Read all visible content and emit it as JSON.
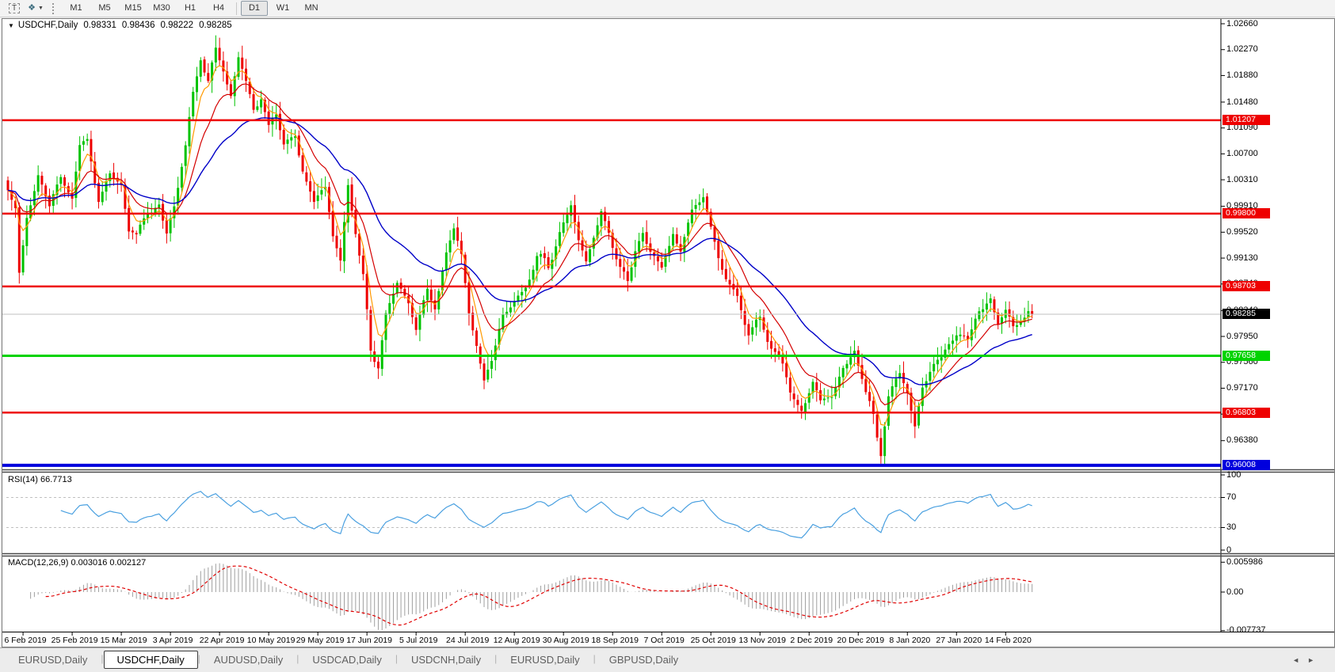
{
  "icons": {
    "text_tool": "T",
    "arrange": "❖",
    "caret": "▼",
    "dropdown": "▼",
    "scroll_left": "◄",
    "scroll_right": "►"
  },
  "toolbar": {
    "timeframes": [
      {
        "label": "M1",
        "active": false
      },
      {
        "label": "M5",
        "active": false
      },
      {
        "label": "M15",
        "active": false
      },
      {
        "label": "M30",
        "active": false
      },
      {
        "label": "H1",
        "active": false
      },
      {
        "label": "H4",
        "active": false
      },
      {
        "label": "D1",
        "active": true
      },
      {
        "label": "W1",
        "active": false
      },
      {
        "label": "MN",
        "active": false
      }
    ]
  },
  "chart_window": {
    "title": {
      "symbol": "USDCHF,Daily",
      "open": "0.98331",
      "high": "0.98436",
      "low": "0.98222",
      "close": "0.98285"
    }
  },
  "chart_data": {
    "type": "candlestick",
    "symbol": "USDCHF",
    "timeframe": "Daily",
    "ohlc_display": {
      "open": 0.98331,
      "high": 0.98436,
      "low": 0.98222,
      "close": 0.98285
    },
    "candle_count": 272,
    "colors": {
      "up": "#00c300",
      "down": "#ee0000",
      "current_price_line": "#bfbfbf",
      "axis_line": "#000000"
    },
    "price_axis": {
      "current_price": "0.98285",
      "ticks": [
        {
          "label": "1.02660"
        },
        {
          "label": "1.02270"
        },
        {
          "label": "1.01880"
        },
        {
          "label": "1.01480"
        },
        {
          "label": "1.01090"
        },
        {
          "label": "1.00700"
        },
        {
          "label": "1.00310"
        },
        {
          "label": "0.99910"
        },
        {
          "label": "0.99520"
        },
        {
          "label": "0.99130"
        },
        {
          "label": "0.98740"
        },
        {
          "label": "0.98340"
        },
        {
          "label": "0.97950"
        },
        {
          "label": "0.97560"
        },
        {
          "label": "0.97170"
        },
        {
          "label": "0.96780"
        },
        {
          "label": "0.96380"
        }
      ]
    },
    "horizontal_lines": [
      {
        "price": 1.01207,
        "label": "1.01207",
        "color": "#ee0000",
        "width": 2.5
      },
      {
        "price": 0.998,
        "label": "0.99800",
        "color": "#ee0000",
        "width": 2.5
      },
      {
        "price": 0.98703,
        "label": "0.98703",
        "color": "#ee0000",
        "width": 2.5
      },
      {
        "price": 0.97658,
        "label": "0.97658",
        "color": "#00d300",
        "width": 3
      },
      {
        "price": 0.96803,
        "label": "0.96803",
        "color": "#ee0000",
        "width": 2.5
      },
      {
        "price": 0.96008,
        "label": "0.96008",
        "color": "#0000dd",
        "width": 4
      }
    ],
    "date_axis": {
      "labels": [
        "6 Feb 2019",
        "25 Feb 2019",
        "15 Mar 2019",
        "3 Apr 2019",
        "22 Apr 2019",
        "10 May 2019",
        "29 May 2019",
        "17 Jun 2019",
        "5 Jul 2019",
        "24 Jul 2019",
        "12 Aug 2019",
        "30 Aug 2019",
        "18 Sep 2019",
        "7 Oct 2019",
        "25 Oct 2019",
        "13 Nov 2019",
        "2 Dec 2019",
        "20 Dec 2019",
        "8 Jan 2020",
        "27 Jan 2020",
        "14 Feb 2020"
      ],
      "first_tick_index": 4,
      "tick_step": 13
    },
    "close_anchors": [
      [
        0,
        1.003
      ],
      [
        2,
        0.9985
      ],
      [
        3,
        0.9885
      ],
      [
        5,
        0.9975
      ],
      [
        8,
        1.0038
      ],
      [
        11,
        0.9995
      ],
      [
        14,
        1.004
      ],
      [
        17,
        1.0005
      ],
      [
        19,
        1.008
      ],
      [
        21,
        1.0092
      ],
      [
        24,
        1.0008
      ],
      [
        27,
        1.004
      ],
      [
        30,
        1.0018
      ],
      [
        32,
        0.9945
      ],
      [
        34,
        0.9938
      ],
      [
        37,
        0.9985
      ],
      [
        40,
        1.0002
      ],
      [
        42,
        0.9958
      ],
      [
        44,
        0.9992
      ],
      [
        47,
        1.0075
      ],
      [
        49,
        1.016
      ],
      [
        51,
        1.0218
      ],
      [
        53,
        1.0185
      ],
      [
        55,
        1.0232
      ],
      [
        57,
        1.0198
      ],
      [
        59,
        1.0162
      ],
      [
        61,
        1.0208
      ],
      [
        63,
        1.0172
      ],
      [
        65,
        1.0132
      ],
      [
        67,
        1.0152
      ],
      [
        69,
        1.0102
      ],
      [
        71,
        1.0118
      ],
      [
        73,
        1.0072
      ],
      [
        76,
        1.0095
      ],
      [
        78,
        1.0048
      ],
      [
        81,
        0.9992
      ],
      [
        84,
        1.0012
      ],
      [
        86,
        0.9942
      ],
      [
        88,
        0.9905
      ],
      [
        90,
        1.0028
      ],
      [
        92,
        0.9962
      ],
      [
        94,
        0.9885
      ],
      [
        96,
        0.9772
      ],
      [
        98,
        0.9748
      ],
      [
        100,
        0.9822
      ],
      [
        103,
        0.9868
      ],
      [
        106,
        0.9838
      ],
      [
        108,
        0.9802
      ],
      [
        111,
        0.9868
      ],
      [
        113,
        0.9842
      ],
      [
        116,
        0.9912
      ],
      [
        118,
        0.9948
      ],
      [
        120,
        0.991
      ],
      [
        122,
        0.9822
      ],
      [
        124,
        0.9782
      ],
      [
        126,
        0.9722
      ],
      [
        128,
        0.9758
      ],
      [
        131,
        0.9832
      ],
      [
        134,
        0.9852
      ],
      [
        137,
        0.9882
      ],
      [
        140,
        0.9922
      ],
      [
        143,
        0.9902
      ],
      [
        146,
        0.9952
      ],
      [
        149,
        0.9992
      ],
      [
        151,
        0.9932
      ],
      [
        153,
        0.9902
      ],
      [
        155,
        0.9942
      ],
      [
        157,
        0.9985
      ],
      [
        159,
        0.9952
      ],
      [
        162,
        0.9895
      ],
      [
        164,
        0.9872
      ],
      [
        166,
        0.9922
      ],
      [
        168,
        0.9952
      ],
      [
        170,
        0.9922
      ],
      [
        173,
        0.9892
      ],
      [
        176,
        0.9952
      ],
      [
        178,
        0.9922
      ],
      [
        181,
        0.9975
      ],
      [
        184,
        1.0002
      ],
      [
        186,
        0.9952
      ],
      [
        188,
        0.9912
      ],
      [
        190,
        0.9882
      ],
      [
        193,
        0.9852
      ],
      [
        196,
        0.9802
      ],
      [
        199,
        0.9818
      ],
      [
        202,
        0.9782
      ],
      [
        205,
        0.9742
      ],
      [
        207,
        0.9702
      ],
      [
        210,
        0.9682
      ],
      [
        213,
        0.9722
      ],
      [
        215,
        0.9692
      ],
      [
        218,
        0.9702
      ],
      [
        221,
        0.9748
      ],
      [
        224,
        0.9772
      ],
      [
        227,
        0.9702
      ],
      [
        229,
        0.9682
      ],
      [
        231,
        0.9622
      ],
      [
        233,
        0.9702
      ],
      [
        236,
        0.9732
      ],
      [
        238,
        0.9708
      ],
      [
        240,
        0.9652
      ],
      [
        242,
        0.9712
      ],
      [
        245,
        0.9742
      ],
      [
        248,
        0.9782
      ],
      [
        251,
        0.9802
      ],
      [
        254,
        0.9792
      ],
      [
        257,
        0.9832
      ],
      [
        260,
        0.9852
      ],
      [
        262,
        0.9822
      ],
      [
        264,
        0.9832
      ],
      [
        266,
        0.9812
      ],
      [
        268,
        0.9822
      ],
      [
        270,
        0.98331
      ],
      [
        271,
        0.98285
      ]
    ],
    "moving_averages": [
      {
        "type": "ema",
        "period": 5,
        "color": "#ff9a00",
        "width": 1.2
      },
      {
        "type": "ema",
        "period": 13,
        "color": "#d40000",
        "width": 1.2
      },
      {
        "type": "ema",
        "period": 34,
        "color": "#0000c8",
        "width": 1.4
      }
    ],
    "indicators": {
      "rsi": {
        "label": "RSI(14) 66.7713",
        "period": 14,
        "last_value": "66.7713",
        "line_color": "#4aa0e0",
        "levels": [
          {
            "value": 100,
            "label": "100",
            "dashed": false
          },
          {
            "value": 70,
            "label": "70",
            "dashed": true
          },
          {
            "value": 30,
            "label": "30",
            "dashed": true
          },
          {
            "value": 0,
            "label": "0",
            "dashed": false
          }
        ]
      },
      "macd": {
        "label": "MACD(12,26,9) 0.003016 0.002127",
        "fast": 12,
        "slow": 26,
        "signal": 9,
        "last_values": "0.003016 0.002127",
        "histogram_color": "#9f9f9f",
        "signal_color": "#e00000",
        "axis_labels": [
          {
            "value": 0.005986,
            "label": "0.005986"
          },
          {
            "value": 0,
            "label": "0.00"
          },
          {
            "value": -0.007737,
            "label": "-0.007737"
          }
        ]
      }
    }
  },
  "tabs": {
    "items": [
      {
        "label": "EURUSD,Daily",
        "active": false
      },
      {
        "label": "USDCHF,Daily",
        "active": true
      },
      {
        "label": "AUDUSD,Daily",
        "active": false
      },
      {
        "label": "USDCAD,Daily",
        "active": false
      },
      {
        "label": "USDCNH,Daily",
        "active": false
      },
      {
        "label": "EURUSD,Daily",
        "active": false
      },
      {
        "label": "GBPUSD,Daily",
        "active": false
      }
    ]
  }
}
